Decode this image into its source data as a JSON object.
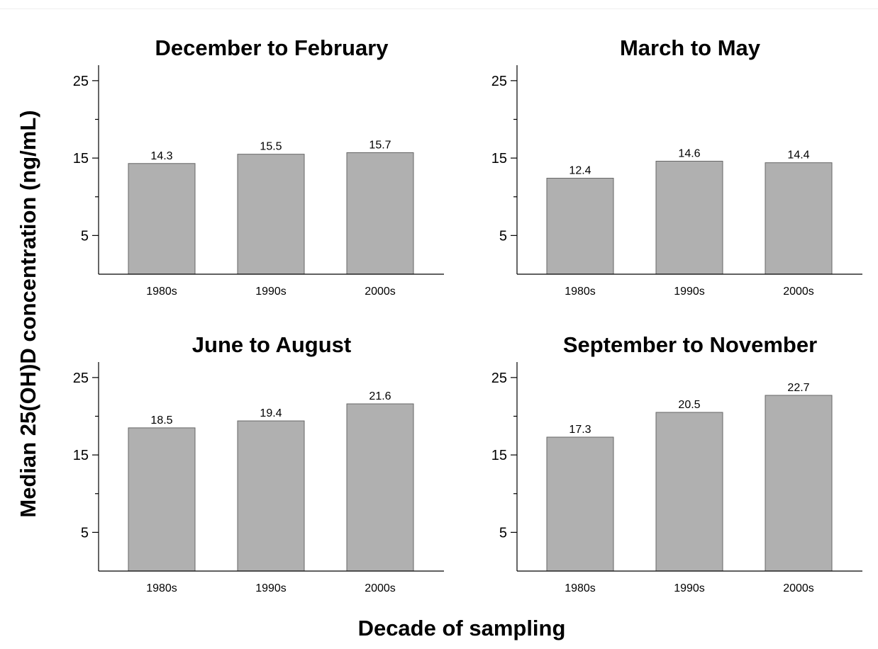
{
  "figure": {
    "ylabel": "Median 25(OH)D concentration (ng/mL)",
    "xlabel": "Decade of sampling"
  },
  "chart_data": [
    {
      "type": "bar",
      "title": "December to February",
      "categories": [
        "1980s",
        "1990s",
        "2000s"
      ],
      "values": [
        14.3,
        15.5,
        15.7
      ],
      "ylim": [
        0,
        27
      ],
      "yticks": [
        5,
        15,
        25
      ],
      "bar_color": "#b0b0b0"
    },
    {
      "type": "bar",
      "title": "March to May",
      "categories": [
        "1980s",
        "1990s",
        "2000s"
      ],
      "values": [
        12.4,
        14.6,
        14.4
      ],
      "ylim": [
        0,
        27
      ],
      "yticks": [
        5,
        15,
        25
      ],
      "bar_color": "#b0b0b0"
    },
    {
      "type": "bar",
      "title": "June to August",
      "categories": [
        "1980s",
        "1990s",
        "2000s"
      ],
      "values": [
        18.5,
        19.4,
        21.6
      ],
      "ylim": [
        0,
        27
      ],
      "yticks": [
        5,
        15,
        25
      ],
      "bar_color": "#b0b0b0"
    },
    {
      "type": "bar",
      "title": "September to November",
      "categories": [
        "1980s",
        "1990s",
        "2000s"
      ],
      "values": [
        17.3,
        20.5,
        22.7
      ],
      "ylim": [
        0,
        27
      ],
      "yticks": [
        5,
        15,
        25
      ],
      "bar_color": "#b0b0b0"
    }
  ]
}
